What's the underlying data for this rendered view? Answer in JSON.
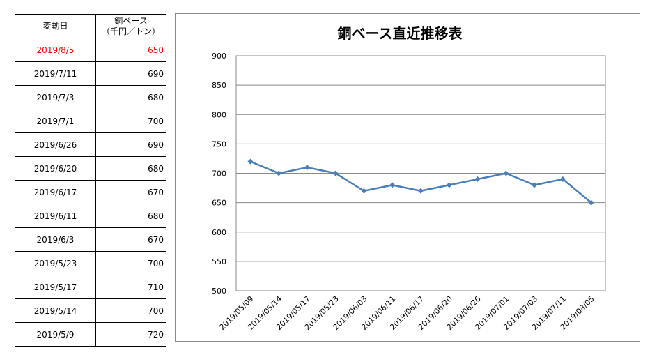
{
  "table": {
    "header": {
      "date": "変動日",
      "price_line1": "銅ベース",
      "price_line2": "（千円／トン）"
    },
    "highlight_color": "#ff0000",
    "rows": [
      {
        "date": "2019/8/5",
        "price": "650",
        "highlight": true
      },
      {
        "date": "2019/7/11",
        "price": "690"
      },
      {
        "date": "2019/7/3",
        "price": "680"
      },
      {
        "date": "2019/7/1",
        "price": "700"
      },
      {
        "date": "2019/6/26",
        "price": "690"
      },
      {
        "date": "2019/6/20",
        "price": "680"
      },
      {
        "date": "2019/6/17",
        "price": "670"
      },
      {
        "date": "2019/6/11",
        "price": "680"
      },
      {
        "date": "2019/6/3",
        "price": "670"
      },
      {
        "date": "2019/5/23",
        "price": "700"
      },
      {
        "date": "2019/5/17",
        "price": "710"
      },
      {
        "date": "2019/5/14",
        "price": "700"
      },
      {
        "date": "2019/5/9",
        "price": "720"
      }
    ]
  },
  "chart_data": {
    "type": "line",
    "title": "銅ベース直近推移表",
    "xlabel": "",
    "ylabel": "",
    "categories": [
      "2019/05/09",
      "2019/05/14",
      "2019/05/17",
      "2019/05/23",
      "2019/06/03",
      "2019/06/11",
      "2019/06/17",
      "2019/06/20",
      "2019/06/26",
      "2019/07/01",
      "2019/07/03",
      "2019/07/11",
      "2019/08/05"
    ],
    "series": [
      {
        "values": [
          720,
          700,
          710,
          700,
          670,
          680,
          670,
          680,
          690,
          700,
          680,
          690,
          650
        ],
        "color": "#4a7ebb"
      }
    ],
    "ylim": [
      500,
      900
    ],
    "yticks": [
      500,
      550,
      600,
      650,
      700,
      750,
      800,
      850,
      900
    ],
    "grid": true,
    "legend": "none",
    "marker": "diamond"
  }
}
